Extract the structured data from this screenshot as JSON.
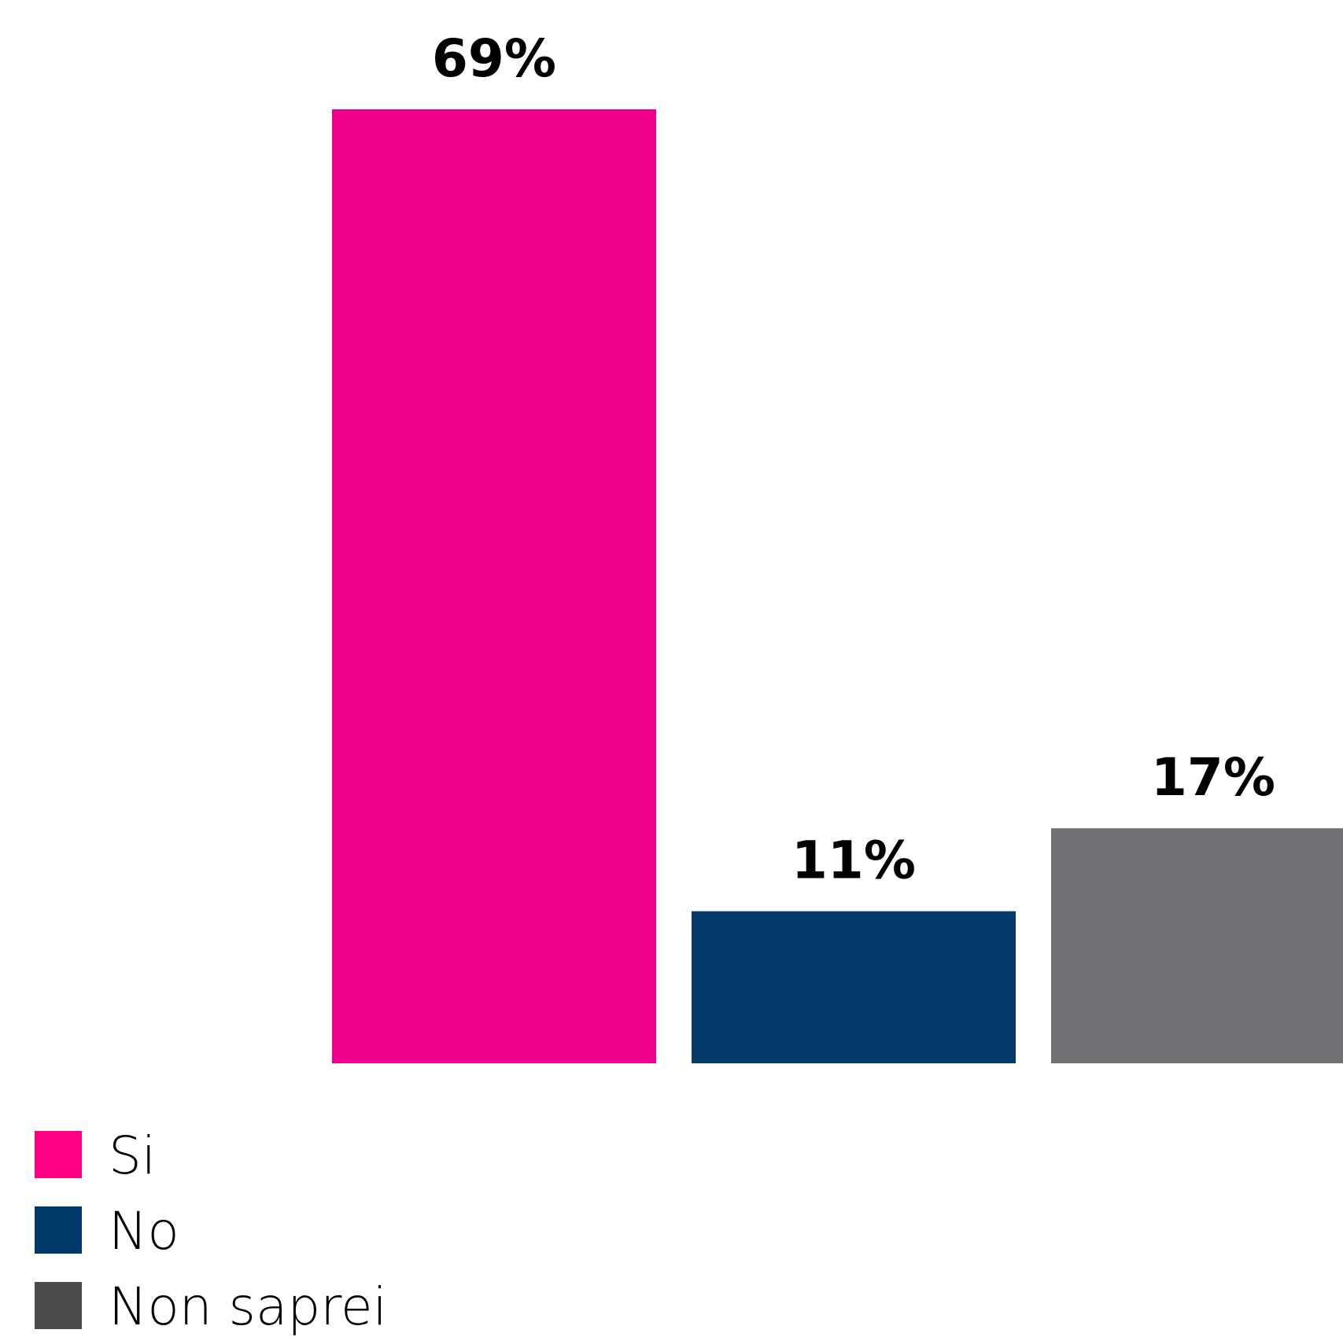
{
  "chart_data": {
    "type": "bar",
    "categories": [
      "Si",
      "No",
      "Non saprei"
    ],
    "values": [
      69,
      11,
      17
    ],
    "value_labels": [
      "69%",
      "11%",
      "17%"
    ],
    "unit": "%",
    "ylim": [
      0,
      69
    ],
    "grid": false,
    "legend_position": "bottom-left",
    "colors": [
      "#ec008c",
      "#033a69",
      "#707175"
    ],
    "legend_colors": [
      "#ff0082",
      "#003a6a",
      "#4b4b4b"
    ],
    "title": "",
    "xlabel": "",
    "ylabel": ""
  }
}
